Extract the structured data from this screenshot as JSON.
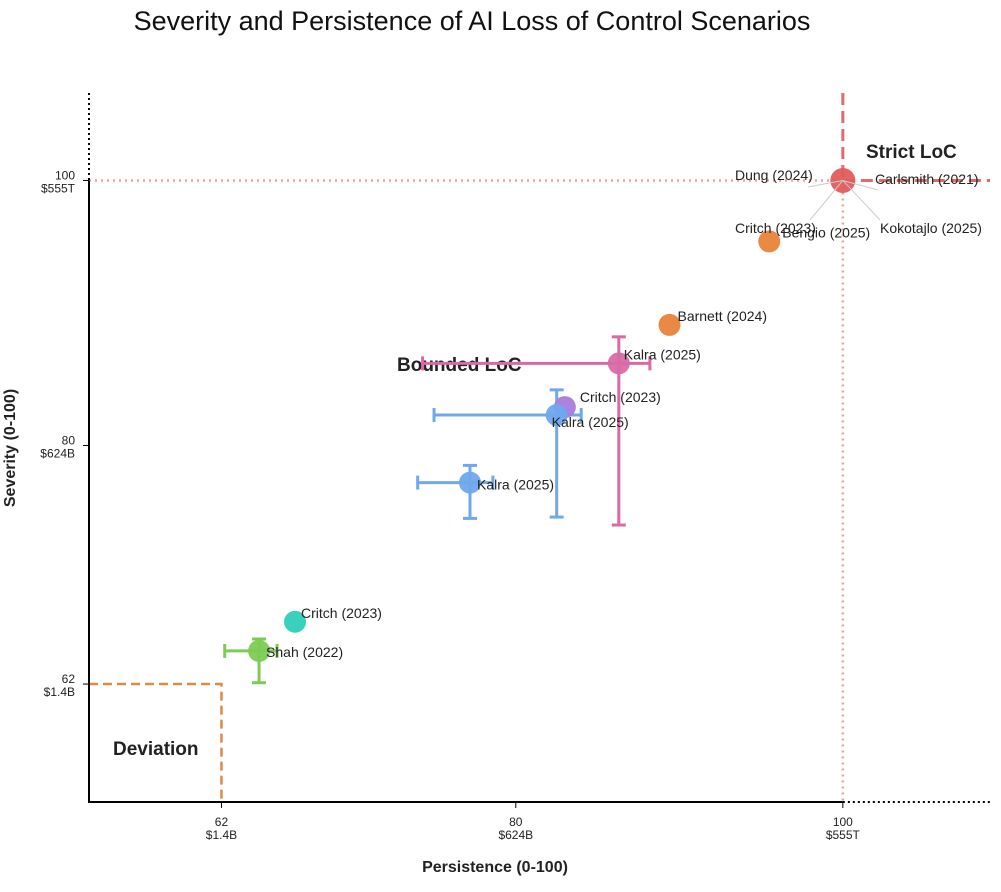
{
  "chart_data": {
    "type": "scatter",
    "title": "Severity and Persistence of AI Loss of Control Scenarios",
    "xlabel": "Persistence (0-100)",
    "ylabel": "Severity (0-100)",
    "xlim": [
      53.9,
      109
    ],
    "ylim": [
      53.1,
      106.6
    ],
    "grid": false,
    "x_ticks": [
      {
        "value": 62,
        "label": "62",
        "sublabel": "$1.4B"
      },
      {
        "value": 80,
        "label": "80",
        "sublabel": "$624B"
      },
      {
        "value": 100,
        "label": "100",
        "sublabel": "$555T"
      }
    ],
    "y_ticks": [
      {
        "value": 62,
        "label": "62",
        "sublabel": "$1.4B"
      },
      {
        "value": 80,
        "label": "80",
        "sublabel": "$624B"
      },
      {
        "value": 100,
        "label": "100",
        "sublabel": "$555T"
      }
    ],
    "regions": [
      {
        "name": "Deviation",
        "x_max": 62,
        "y_max": 62,
        "color": "#dd8a45"
      },
      {
        "name": "Bounded LoC"
      },
      {
        "name": "Strict LoC",
        "x_min": 100,
        "y_min": 100,
        "color": "#e06b6b"
      }
    ],
    "points": [
      {
        "label": "Dung (2024)",
        "x": 100,
        "y": 100,
        "color": "#e05c5c"
      },
      {
        "label": "Carlsmith (2021)",
        "x": 100,
        "y": 100,
        "color": "#e05c5c"
      },
      {
        "label": "Critch (2023)",
        "x": 100,
        "y": 100,
        "color": "#e05c5c"
      },
      {
        "label": "Kokotajlo (2025)",
        "x": 100,
        "y": 100,
        "color": "#e05c5c"
      },
      {
        "label": "Bengio (2025)",
        "x": 95.5,
        "y": 95.4,
        "color": "#e8833a"
      },
      {
        "label": "Barnett (2024)",
        "x": 89.4,
        "y": 89.1,
        "color": "#e8833a"
      },
      {
        "label": "Kalra (2025)",
        "x": 86.3,
        "y": 86.2,
        "color": "#d96aa5",
        "xerr": [
          74.3,
          88.2
        ],
        "yerr": [
          74.0,
          88.2
        ]
      },
      {
        "label": "Critch (2023)",
        "x": 83.0,
        "y": 82.9,
        "color": "#a77cdc"
      },
      {
        "label": "Kalra (2025)",
        "x": 82.5,
        "y": 82.3,
        "color": "#6fa8ec",
        "xerr": [
          75.0,
          84.0
        ],
        "yerr": [
          74.6,
          84.2
        ]
      },
      {
        "label": "Kalra (2025)",
        "x": 77.2,
        "y": 77.2,
        "color": "#6fa8ec",
        "xerr": [
          74.0,
          78.6
        ],
        "yerr": [
          74.5,
          78.5
        ]
      },
      {
        "label": "Critch (2023)",
        "x": 66.5,
        "y": 66.7,
        "color": "#2ecfb8"
      },
      {
        "label": "Shah (2022)",
        "x": 64.3,
        "y": 64.5,
        "color": "#7dcb55",
        "xerr": [
          62.2,
          65.4
        ],
        "yerr": [
          62.1,
          65.4
        ]
      }
    ]
  }
}
